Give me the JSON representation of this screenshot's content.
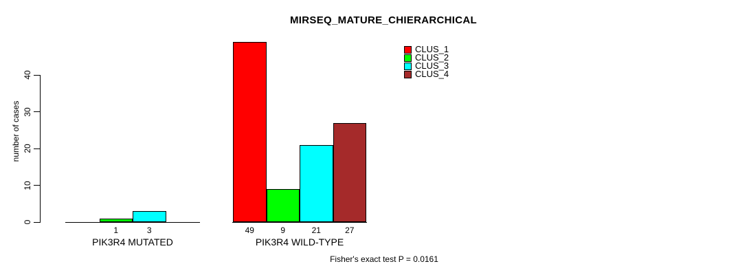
{
  "chart_data": {
    "type": "bar",
    "title": "MIRSEQ_MATURE_CHIERARCHICAL",
    "ylabel": "number of cases",
    "xlabel": "",
    "ylim": [
      0,
      40
    ],
    "yticks": [
      0,
      10,
      20,
      30,
      40
    ],
    "categories": [
      "PIK3R4 MUTATED",
      "PIK3R4 WILD-TYPE"
    ],
    "series": [
      {
        "name": "CLUS_1",
        "color": "#ff0000",
        "values": [
          0,
          49
        ]
      },
      {
        "name": "CLUS_2",
        "color": "#00ff00",
        "values": [
          1,
          9
        ]
      },
      {
        "name": "CLUS_3",
        "color": "#00ffff",
        "values": [
          3,
          21
        ]
      },
      {
        "name": "CLUS_4",
        "color": "#a52a2a",
        "values": [
          0,
          27
        ]
      }
    ],
    "visible_bar_labels": [
      1,
      3,
      49,
      9,
      21,
      27
    ],
    "show_zero_value_labels": false,
    "grid": false,
    "legend_position": "top-right",
    "legend_entries": [
      "CLUS_1",
      "CLUS_2",
      "CLUS_3",
      "CLUS_4"
    ],
    "annotation": "Fisher's exact test P = 0.0161",
    "axis_color": "#000000",
    "text_color": "#000000",
    "background_color": "#ffffff"
  }
}
